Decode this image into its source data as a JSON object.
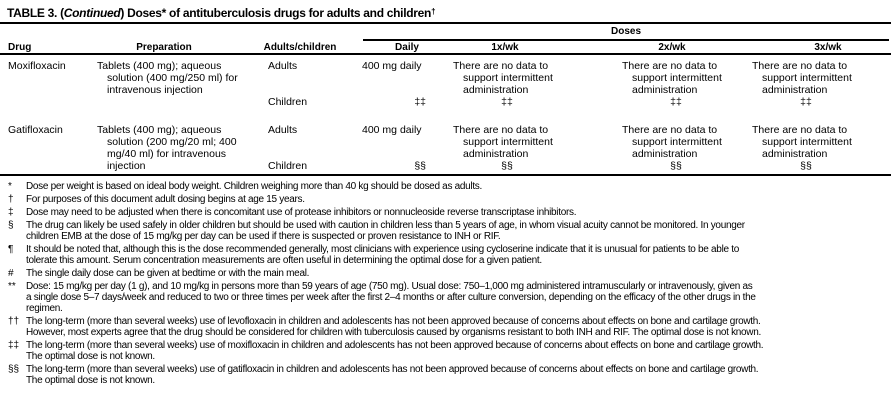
{
  "title": {
    "part1": "TABLE 3. (",
    "continued": "Continued",
    "part2": ") Doses* of antituberculosis drugs for adults and children",
    "sup": "†"
  },
  "table": {
    "doses_header": "Doses",
    "columns": [
      "Drug",
      "Preparation",
      "Adults/children",
      "Daily",
      "1x/wk",
      "2x/wk",
      "3x/wk"
    ],
    "rows": [
      {
        "drug": "Moxifloxacin",
        "preparation_lines": [
          "Tablets (400 mg); aqueous",
          "solution (400 mg/250 ml) for",
          "intravenous injection"
        ],
        "adults_label": "Adults",
        "children_label": "Children",
        "adults_daily": "400 mg daily",
        "children_marker": "‡‡",
        "no_data_lines": [
          "There are no data to",
          "support intermittent",
          "administration"
        ]
      },
      {
        "drug": "Gatifloxacin",
        "preparation_lines": [
          "Tablets (400 mg); aqueous",
          "solution (200 mg/20 ml; 400",
          "mg/40 ml) for intravenous",
          "injection"
        ],
        "adults_label": "Adults",
        "children_label": "Children",
        "adults_daily": "400 mg daily",
        "children_marker": "§§",
        "no_data_lines": [
          "There are no data to",
          "support intermittent",
          "administration"
        ]
      }
    ]
  },
  "footnotes": [
    {
      "marker": "*",
      "lines": [
        "Dose per weight is based on ideal body weight. Children weighing more than 40 kg should be dosed as adults."
      ]
    },
    {
      "marker": "†",
      "lines": [
        "For purposes of this document adult dosing begins at age 15 years."
      ]
    },
    {
      "marker": "‡",
      "lines": [
        "Dose may need to be adjusted when there is concomitant use of protease inhibitors or nonnucleoside reverse transcriptase inhibitors."
      ]
    },
    {
      "marker": "§",
      "lines": [
        "The drug can likely be used safely in older children but should be used with caution in children less than 5 years of age, in whom visual acuity cannot be monitored. In younger",
        "children EMB at the dose of 15 mg/kg per day can be used if there is suspected or proven resistance to INH or RIF."
      ]
    },
    {
      "marker": "¶",
      "lines": [
        "It should be noted that, although this is the dose recommended generally, most clinicians with experience using cycloserine indicate that it is unusual for patients to be able to",
        "tolerate this amount. Serum concentration measurements are often useful in determining the optimal dose for a given patient."
      ]
    },
    {
      "marker": "#",
      "lines": [
        "The single daily dose can be given at bedtime or with the main meal."
      ]
    },
    {
      "marker": "**",
      "lines": [
        "Dose: 15 mg/kg per day (1 g), and 10 mg/kg in persons more than 59 years of age (750 mg). Usual dose: 750–1,000 mg administered intramuscularly or intravenously,  given as",
        "a single dose 5–7 days/week and reduced to two or three times per week after the first 2–4 months or after culture conversion, depending on the efficacy of the other drugs in the",
        "regimen."
      ]
    },
    {
      "marker": "††",
      "lines": [
        "The long-term (more than several weeks) use of levofloxacin in children and adolescents has not been approved because of concerns about effects on bone and cartilage growth.",
        "However, most experts agree that the drug should be considered for children with tuberculosis caused by organisms resistant to both INH and RIF. The optimal dose is not known."
      ]
    },
    {
      "marker": "‡‡",
      "lines": [
        "The long-term (more than several weeks) use of moxifloxacin in children and adolescents has not been approved because of concerns about effects on bone and cartilage growth.",
        "The optimal dose is not known."
      ]
    },
    {
      "marker": "§§",
      "lines": [
        "The long-term (more than several weeks) use of gatifloxacin in children and adolescents has not been approved because of concerns about effects on bone and cartilage growth.",
        "The optimal dose is not known."
      ]
    }
  ]
}
